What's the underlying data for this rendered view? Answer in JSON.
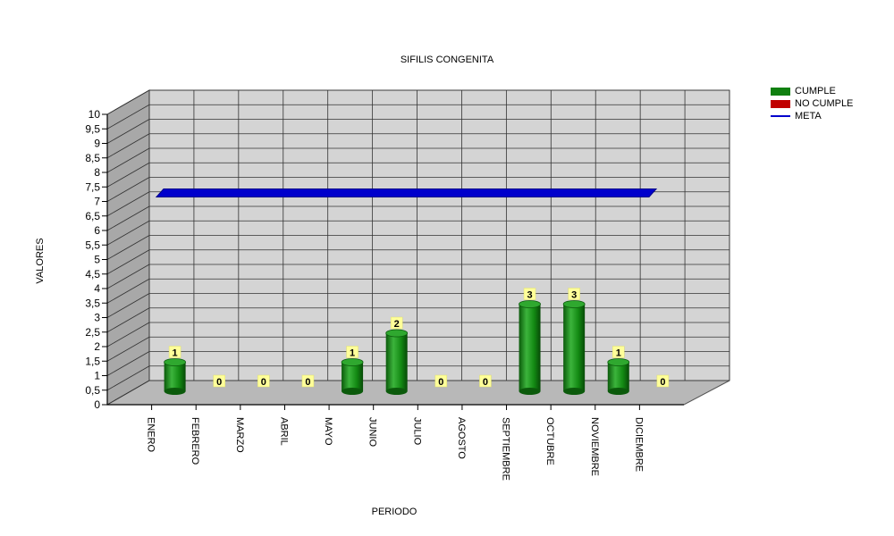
{
  "chart_data": {
    "type": "bar",
    "title": "SIFILIS CONGENITA",
    "xlabel": "PERIODO",
    "ylabel": "VALORES",
    "categories": [
      "ENERO",
      "FEBRERO",
      "MARZO",
      "ABRIL",
      "MAYO",
      "JUNIO",
      "JULIO",
      "AGOSTO",
      "SEPTIEMBRE",
      "OCTUBRE",
      "NOVIEMBRE",
      "DICIEMBRE"
    ],
    "series": [
      {
        "name": "CUMPLE",
        "color": "#108010",
        "values": [
          1,
          0,
          0,
          0,
          1,
          2,
          0,
          0,
          3,
          3,
          1,
          0
        ]
      },
      {
        "name": "NO CUMPLE",
        "color": "#c00000",
        "values": [
          0,
          0,
          0,
          0,
          0,
          0,
          0,
          0,
          0,
          0,
          0,
          0
        ]
      }
    ],
    "meta": {
      "name": "META",
      "color": "#0000cc",
      "value": 7
    },
    "yticks": [
      "0",
      "0,5",
      "1",
      "1,5",
      "2",
      "2,5",
      "3",
      "3,5",
      "4",
      "4,5",
      "5",
      "5,5",
      "6",
      "6,5",
      "7",
      "7,5",
      "8",
      "8,5",
      "9",
      "9,5",
      "10"
    ],
    "ylim": [
      0,
      10
    ],
    "grid": true,
    "legend_position": "top-right",
    "data_labels": [
      "1",
      "0",
      "0",
      "0",
      "1",
      "2",
      "0",
      "0",
      "3",
      "3",
      "1",
      "0"
    ]
  },
  "legend": {
    "items": [
      {
        "label": "CUMPLE",
        "color": "#108010"
      },
      {
        "label": "NO CUMPLE",
        "color": "#c00000"
      },
      {
        "label": "META",
        "color": "#0000cc"
      }
    ]
  }
}
